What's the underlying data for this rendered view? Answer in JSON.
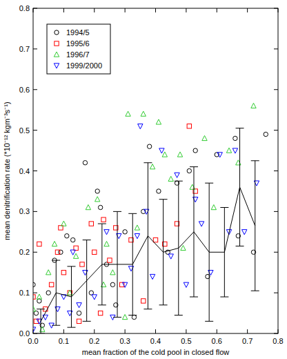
{
  "chart_data": {
    "type": "scatter",
    "x_label": "mean fraction of the cold pool in closed flow",
    "y_label": "mean denitrification rate (*10⁻¹² kgm⁻³s⁻¹)",
    "xlim": [
      0,
      0.8
    ],
    "ylim": [
      0,
      0.8
    ],
    "xticks": [
      {
        "value": 0,
        "label": "0.0"
      },
      0.1,
      0.2,
      0.3,
      0.4,
      0.5,
      0.6,
      0.7,
      0.8
    ],
    "yticks": [
      {
        "value": 0,
        "label": "0.0"
      },
      0.1,
      0.2,
      0.3,
      0.4,
      0.5,
      0.6,
      0.7,
      0.8
    ],
    "legend": "upper left",
    "series": [
      {
        "name": "1994/5",
        "color": "#000000",
        "marker": "circle",
        "x": [
          0,
          0.01,
          0.02,
          0.03,
          0.05,
          0.07,
          0.09,
          0.11,
          0.13,
          0.17,
          0.21,
          0.22,
          0.24,
          0.27,
          0.3,
          0.33,
          0.36,
          0.38,
          0.41,
          0.44,
          0.47,
          0.51,
          0.53,
          0.57,
          0.6,
          0.66,
          0.67,
          0.76,
          0.72,
          0.15,
          0.19,
          0.26
        ],
        "values": [
          0.12,
          0.05,
          0.08,
          0.02,
          0.1,
          0.18,
          0.2,
          0.24,
          0.23,
          0.42,
          0.35,
          0.31,
          0.17,
          0.07,
          0.25,
          0.04,
          0.3,
          0.46,
          0.35,
          0.2,
          0.37,
          0.4,
          0.45,
          0.14,
          0.44,
          0.48,
          0.24,
          0.49,
          0.2,
          0.05,
          0.1,
          0.12
        ]
      },
      {
        "name": "1995/6",
        "color": "#ff0000",
        "marker": "square",
        "x": [
          0,
          0.01,
          0.02,
          0.04,
          0.06,
          0.08,
          0.09,
          0.1,
          0.12,
          0.14,
          0.16,
          0.19,
          0.2,
          0.23,
          0.25,
          0.27,
          0.29,
          0.32,
          0.36,
          0.4,
          0.43,
          0.47,
          0.51,
          0.53,
          0.22,
          0.15
        ],
        "values": [
          0.09,
          0.03,
          0.22,
          0.06,
          0.12,
          0.2,
          0.26,
          0.15,
          0.1,
          0.21,
          0.17,
          0.27,
          0.2,
          0.28,
          0.18,
          0.26,
          0.12,
          0.23,
          0.08,
          0.23,
          0.22,
          0.27,
          0.51,
          0.35,
          0.05,
          0.03
        ]
      },
      {
        "name": "1996/7",
        "color": "#33cc33",
        "marker": "triangle",
        "x": [
          0,
          0.02,
          0.03,
          0.05,
          0.07,
          0.1,
          0.12,
          0.14,
          0.18,
          0.21,
          0.24,
          0.26,
          0.31,
          0.34,
          0.36,
          0.39,
          0.41,
          0.43,
          0.45,
          0.48,
          0.49,
          0.52,
          0.56,
          0.59,
          0.64,
          0.67,
          0.72,
          0.3,
          0.23
        ],
        "values": [
          0.06,
          0.09,
          0.01,
          0.15,
          0.22,
          0.27,
          0.1,
          0.19,
          0.31,
          0.33,
          0.22,
          0.15,
          0.54,
          0.26,
          0.54,
          0.41,
          0.52,
          0.44,
          0.38,
          0.44,
          0.21,
          0.36,
          0.48,
          0.31,
          0.45,
          0.42,
          0.56,
          0.04,
          0.12
        ]
      },
      {
        "name": "1999/2000",
        "color": "#0000ff",
        "marker": "triangle-down",
        "x": [
          0,
          0.02,
          0.04,
          0.06,
          0.08,
          0.1,
          0.12,
          0.13,
          0.15,
          0.17,
          0.2,
          0.24,
          0.28,
          0.3,
          0.32,
          0.35,
          0.37,
          0.39,
          0.42,
          0.45,
          0.47,
          0.5,
          0.53,
          0.55,
          0.58,
          0.61,
          0.64,
          0.66,
          0.69,
          0.73,
          0.34,
          0.26
        ],
        "values": [
          0.01,
          0.03,
          0.04,
          0.02,
          0.06,
          0.09,
          0.05,
          0.2,
          0.07,
          0.15,
          0.09,
          0.25,
          0.24,
          0.12,
          0.16,
          0.51,
          0.3,
          0.14,
          0.45,
          0.19,
          0.39,
          0.12,
          0.33,
          0.27,
          0.15,
          0.44,
          0.25,
          0.45,
          0.25,
          0.37,
          0.24,
          0.04
        ]
      },
      {
        "type": "line",
        "color": "#000000",
        "x": [
          0.025,
          0.075,
          0.125,
          0.175,
          0.225,
          0.275,
          0.325,
          0.375,
          0.425,
          0.475,
          0.525,
          0.575,
          0.625,
          0.675,
          0.725
        ],
        "values": [
          0.03,
          0.1,
          0.09,
          0.13,
          0.17,
          0.17,
          0.17,
          0.24,
          0.2,
          0.21,
          0.25,
          0.2,
          0.2,
          0.36,
          0.265
        ],
        "errors": [
          0.03,
          0.08,
          0.075,
          0.1,
          0.1,
          0.13,
          0.125,
          0.18,
          0.13,
          0.165,
          0.16,
          0.17,
          0.11,
          0.145,
          0.16
        ]
      }
    ]
  }
}
